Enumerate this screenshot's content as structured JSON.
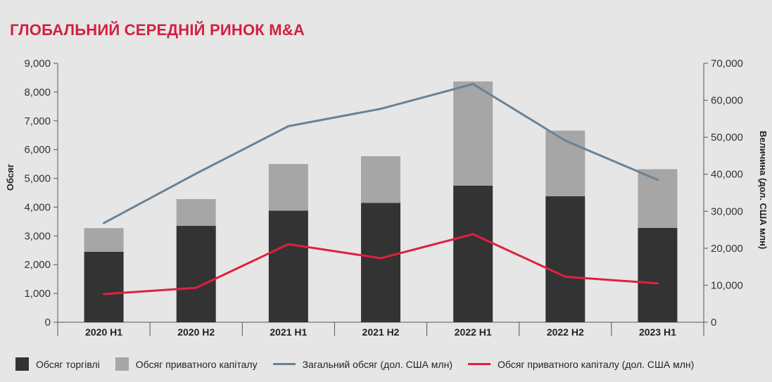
{
  "title": "ГЛОБАЛЬНИЙ СЕРЕДНІЙ РИНОК M&A",
  "colors": {
    "title": "#d3203f",
    "strategic": "#333333",
    "private_equity": "#a6a6a6",
    "total_value_line": "#6a8296",
    "pe_value_line": "#e0203f",
    "background": "#e6e6e6"
  },
  "chart_data": {
    "type": "bar",
    "stacked": true,
    "categories": [
      "2020 H1",
      "2020 H2",
      "2021 H1",
      "2021 H2",
      "2022 H1",
      "2022 H2",
      "2023 H1"
    ],
    "ylabel": "Обсяг",
    "y2label": "Величина (дол. США млн)",
    "ylim": [
      0,
      9000
    ],
    "y2lim": [
      0,
      70000
    ],
    "yticks": [
      "0",
      "1,000",
      "2,000",
      "3,000",
      "4,000",
      "5,000",
      "6,000",
      "7,000",
      "8,000",
      "9,000"
    ],
    "y2ticks": [
      "0",
      "10,000",
      "20,000",
      "30,000",
      "40,000",
      "50,000",
      "60,000",
      "70,000"
    ],
    "grid": false,
    "legend_position": "bottom",
    "series": [
      {
        "name": "Обсяг торгівлі",
        "type": "bar",
        "axis": "left",
        "values": [
          2450,
          3350,
          3880,
          4150,
          4750,
          4380,
          3280
        ]
      },
      {
        "name": "Обсяг приватного капіталу",
        "type": "bar",
        "axis": "left",
        "values": [
          820,
          930,
          1620,
          1620,
          3620,
          2280,
          2040
        ]
      },
      {
        "name": "Загальний обсяг (дол. США млн)",
        "type": "line",
        "axis": "right",
        "values": [
          26800,
          40200,
          53000,
          57700,
          64400,
          49100,
          38500
        ]
      },
      {
        "name": "Обсяг приватного капіталу (дол. США млн)",
        "type": "line",
        "axis": "right",
        "values": [
          7600,
          9300,
          21100,
          17300,
          23800,
          12300,
          10500
        ]
      }
    ]
  }
}
